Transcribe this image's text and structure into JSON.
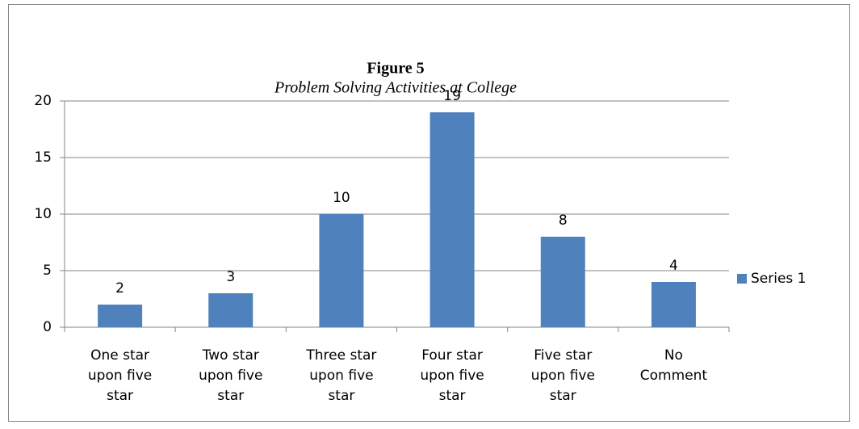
{
  "chart_data": {
    "type": "bar",
    "title": "Figure 5",
    "subtitle": "Problem Solving Activities at College",
    "categories": [
      [
        "One star",
        "upon five",
        "star"
      ],
      [
        "Two star",
        "upon five",
        "star"
      ],
      [
        "Three star",
        "upon five",
        "star"
      ],
      [
        "Four star",
        "upon five",
        "star"
      ],
      [
        "Five star",
        "upon five",
        "star"
      ],
      [
        "No",
        "Comment"
      ]
    ],
    "series": [
      {
        "name": "Series 1",
        "color": "#4f81bd",
        "values": [
          2,
          3,
          10,
          19,
          8,
          4
        ]
      }
    ],
    "ylim": [
      0,
      20
    ],
    "yticks": [
      0,
      5,
      10,
      15,
      20
    ],
    "grid": true,
    "legend": "right"
  }
}
